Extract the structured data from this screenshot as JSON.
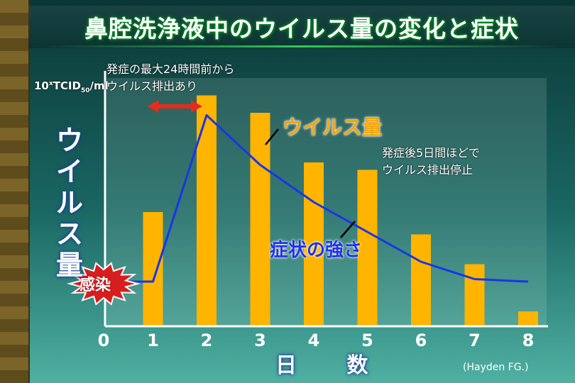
{
  "title": "鼻腔洗浄液中のウイルス量の変化と症状",
  "y_axis_unit": {
    "base": "10",
    "exp": "x",
    "middle": "TCID",
    "sub": "50",
    "tail": "/ml"
  },
  "y_axis_label": "ウイルス量",
  "x_axis_label": "日 数",
  "annotations": {
    "onset_note_line1": "発症の最大24時間前から",
    "onset_note_line2": "ウイルス排出あり",
    "stop_note_line1": "発症後5日間ほどで",
    "stop_note_line2": "ウイルス排出停止",
    "virus_amount": "ウイルス量",
    "symptom_strength": "症状の強さ",
    "infection": "感染"
  },
  "source": "(Hayden FG.)",
  "colors": {
    "bar": "#ffb400",
    "line": "#1a35e6",
    "arrow": "#e52c1e",
    "burst": "#d61e1e"
  },
  "chart_data": {
    "type": "bar",
    "title": "鼻腔洗浄液中のウイルス量の変化と症状",
    "xlabel": "日 数",
    "ylabel": "ウイルス量",
    "x_ticks": [
      0,
      1,
      2,
      3,
      4,
      5,
      6,
      7,
      8
    ],
    "xlim": [
      0,
      8
    ],
    "ylim": [
      0,
      1
    ],
    "grid": false,
    "series": [
      {
        "name": "ウイルス量",
        "type": "bar",
        "x": [
          1,
          2,
          3,
          4,
          5,
          6,
          7,
          8
        ],
        "values": [
          0.46,
          0.93,
          0.86,
          0.66,
          0.63,
          0.37,
          0.25,
          0.06
        ]
      },
      {
        "name": "症状の強さ",
        "type": "line",
        "x": [
          0,
          1,
          2,
          3,
          4,
          5,
          6,
          7,
          8
        ],
        "values": [
          0.18,
          0.18,
          0.85,
          0.65,
          0.5,
          0.38,
          0.26,
          0.19,
          0.18
        ]
      }
    ]
  }
}
